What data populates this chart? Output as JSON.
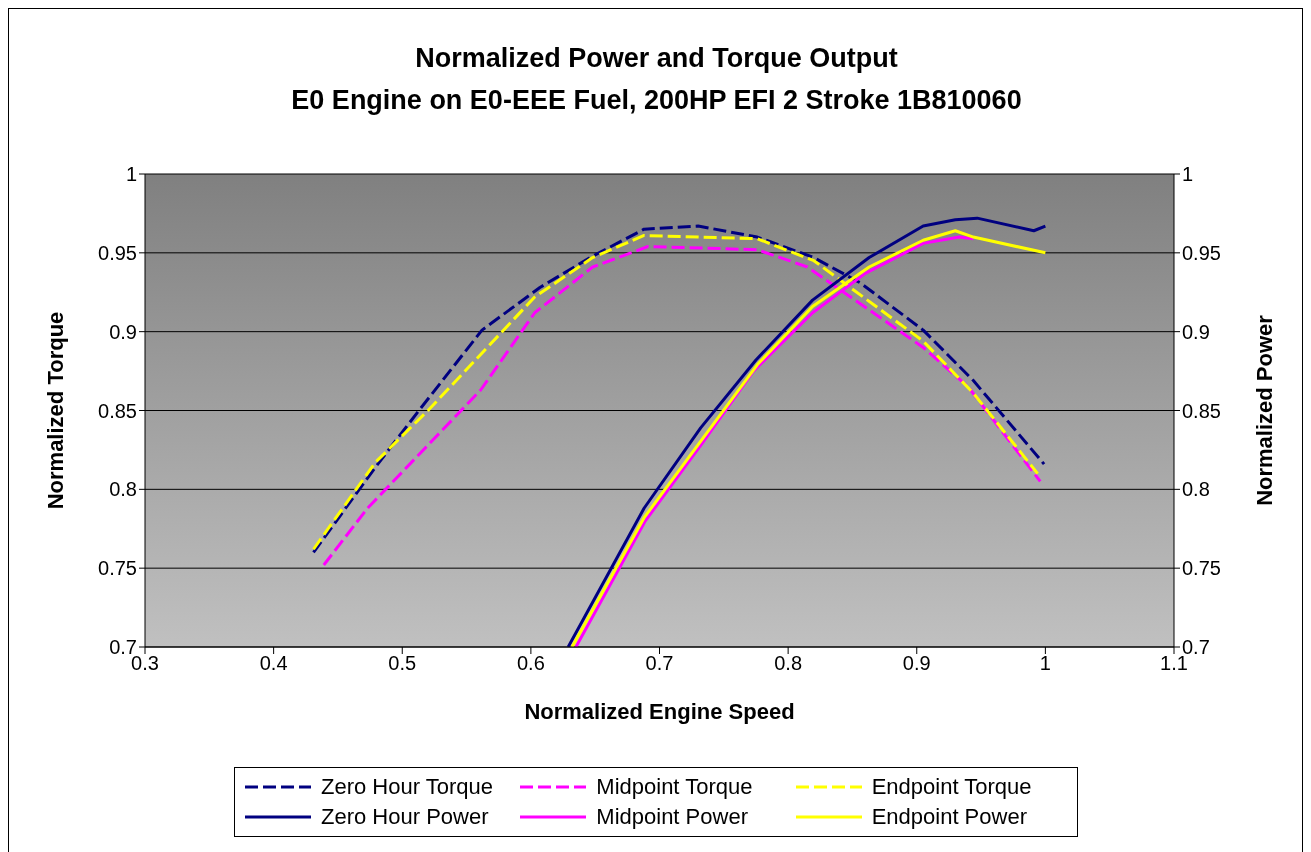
{
  "chart_data": {
    "type": "line",
    "title": "Normalized Power and Torque Output",
    "subtitle": "E0 Engine on E0-EEE Fuel, 200HP EFI 2 Stroke 1B810060",
    "xlabel": "Normalized Engine Speed",
    "ylabel": "Normalized Torque",
    "y2label": "Normalized Power",
    "xlim": [
      0.3,
      1.1
    ],
    "xticks": [
      0.3,
      0.4,
      0.5,
      0.6,
      0.7,
      0.8,
      0.9,
      1,
      1.1
    ],
    "ylim": [
      0.7,
      1
    ],
    "yticks": [
      0.7,
      0.75,
      0.8,
      0.85,
      0.9,
      0.95,
      1
    ],
    "y2lim": [
      0.7,
      1
    ],
    "y2ticks": [
      0.7,
      0.75,
      0.8,
      0.85,
      0.9,
      0.95,
      1
    ],
    "grid": "y",
    "legend": "bottom",
    "series": [
      {
        "name": "Zero Hour Torque",
        "color": "#000080",
        "line_style": "dashed",
        "x": [
          0.431,
          0.48,
          0.512,
          0.562,
          0.607,
          0.646,
          0.688,
          0.73,
          0.776,
          0.82,
          0.856,
          0.905,
          0.944,
          0.999
        ],
        "values": [
          0.76,
          0.815,
          0.849,
          0.901,
          0.928,
          0.947,
          0.965,
          0.967,
          0.96,
          0.947,
          0.931,
          0.901,
          0.869,
          0.816
        ]
      },
      {
        "name": "Midpoint Torque",
        "color": "#ff00ff",
        "line_style": "dashed",
        "x": [
          0.439,
          0.473,
          0.561,
          0.603,
          0.648,
          0.691,
          0.776,
          0.815,
          0.905,
          0.94,
          0.996
        ],
        "values": [
          0.752,
          0.788,
          0.863,
          0.912,
          0.941,
          0.954,
          0.952,
          0.941,
          0.89,
          0.865,
          0.805
        ]
      },
      {
        "name": "Endpoint Torque",
        "color": "#ffff00",
        "line_style": "dashed",
        "x": [
          0.431,
          0.479,
          0.52,
          0.603,
          0.648,
          0.688,
          0.776,
          0.82,
          0.905,
          0.944,
          0.994
        ],
        "values": [
          0.762,
          0.817,
          0.85,
          0.922,
          0.947,
          0.961,
          0.959,
          0.945,
          0.894,
          0.861,
          0.81
        ]
      },
      {
        "name": "Zero Hour Power",
        "color": "#000080",
        "line_style": "solid",
        "x": [
          0.629,
          0.688,
          0.732,
          0.775,
          0.819,
          0.863,
          0.905,
          0.93,
          0.947,
          0.991,
          1.0
        ],
        "values": [
          0.7,
          0.788,
          0.839,
          0.882,
          0.92,
          0.947,
          0.967,
          0.971,
          0.972,
          0.964,
          0.967
        ]
      },
      {
        "name": "Midpoint Power",
        "color": "#ff00ff",
        "line_style": "solid",
        "x": [
          0.635,
          0.689,
          0.733,
          0.773,
          0.819,
          0.86,
          0.905,
          0.933,
          0.944
        ],
        "values": [
          0.7,
          0.78,
          0.829,
          0.875,
          0.912,
          0.937,
          0.956,
          0.96,
          0.959
        ]
      },
      {
        "name": "Endpoint Power",
        "color": "#ffff00",
        "line_style": "solid",
        "x": [
          0.632,
          0.688,
          0.776,
          0.819,
          0.863,
          0.905,
          0.93,
          0.944,
          1.0
        ],
        "values": [
          0.7,
          0.782,
          0.879,
          0.916,
          0.941,
          0.958,
          0.964,
          0.96,
          0.95
        ]
      }
    ]
  }
}
